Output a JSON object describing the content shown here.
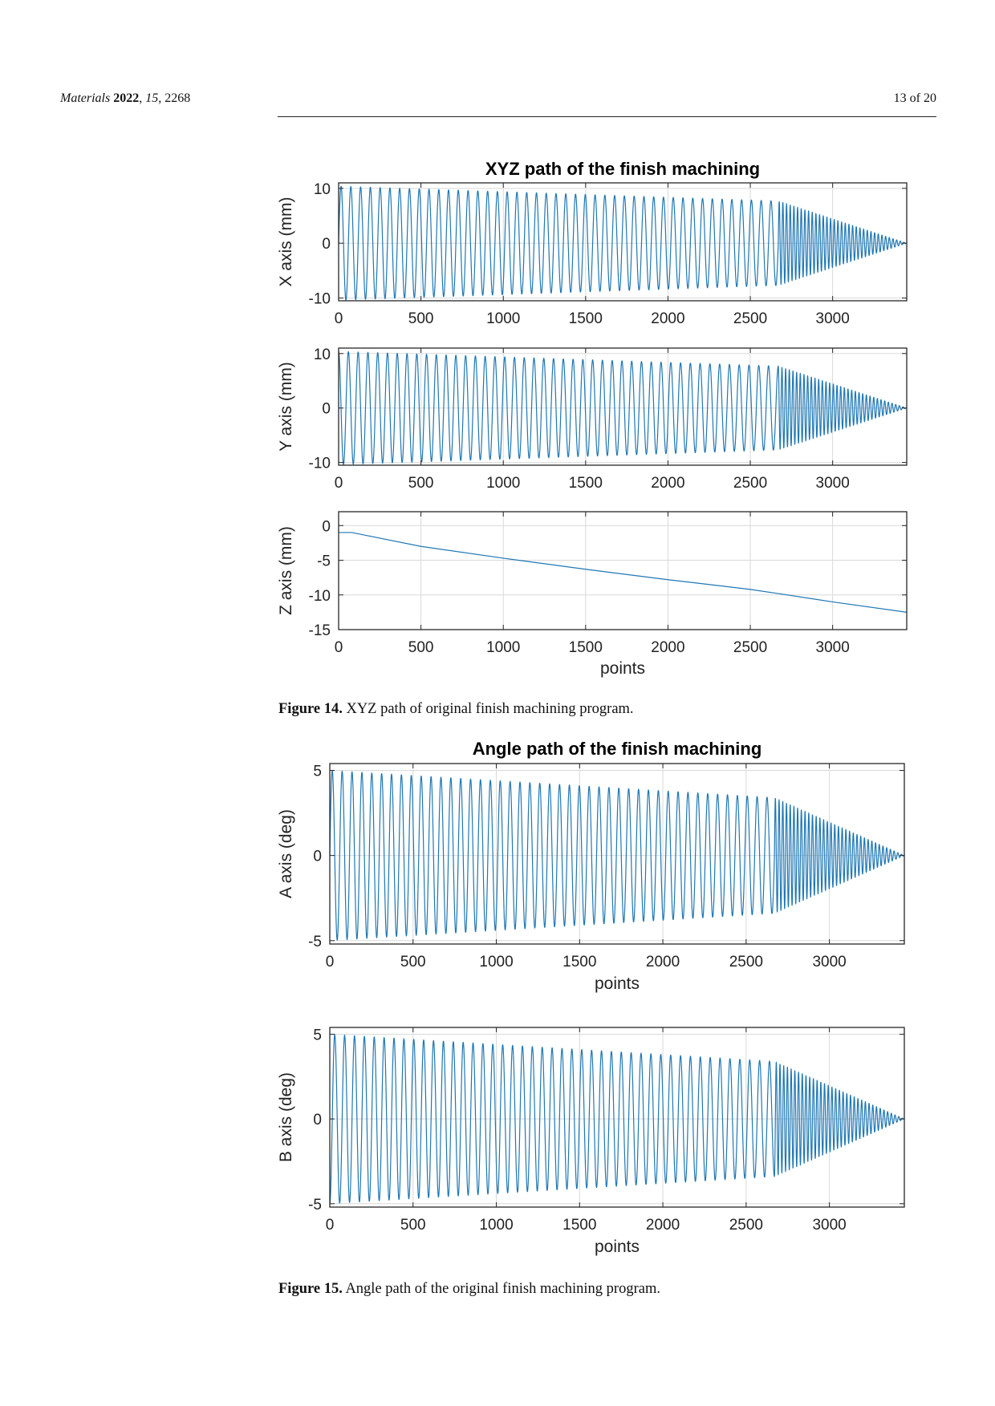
{
  "header": {
    "journal_italic": "Materials",
    "year": "2022",
    "volume": "15",
    "article": "2268",
    "page_of": "13 of 20"
  },
  "figure14": {
    "label": "Figure 14.",
    "caption": "XYZ path of original finish machining program."
  },
  "figure15": {
    "label": "Figure 15.",
    "caption": "Angle path of the original finish machining program."
  },
  "colors": {
    "line": "#1f77b4",
    "grid": "#d9d9d9",
    "axes": "#262626"
  },
  "chart_data": [
    {
      "id": "x",
      "type": "line",
      "title": "XYZ path of the finish machining",
      "xlabel": "",
      "ylabel": "X axis (mm)",
      "xlim": [
        0,
        3450
      ],
      "ylim": [
        -10.5,
        11
      ],
      "xticks": [
        0,
        500,
        1000,
        1500,
        2000,
        2500,
        3000
      ],
      "yticks": [
        -10,
        0,
        10
      ],
      "grid": true,
      "series": [
        {
          "kind": "oscillation",
          "n_points": 3450,
          "amplitude": 10.4,
          "phase": 0,
          "segments": [
            {
              "end": 2670,
              "cycles": 45,
              "amp_end": 7.7
            },
            {
              "end": 3450,
              "cycles": 35,
              "amp_end": 0
            }
          ]
        }
      ]
    },
    {
      "id": "y",
      "type": "line",
      "title": "",
      "xlabel": "",
      "ylabel": "Y axis (mm)",
      "xlim": [
        0,
        3450
      ],
      "ylim": [
        -10.5,
        11
      ],
      "xticks": [
        0,
        500,
        1000,
        1500,
        2000,
        2500,
        3000
      ],
      "yticks": [
        -10,
        0,
        10
      ],
      "grid": true,
      "series": [
        {
          "kind": "oscillation",
          "n_points": 3450,
          "amplitude": 10.4,
          "phase": 1.5708,
          "segments": [
            {
              "end": 2670,
              "cycles": 45,
              "amp_end": 7.7
            },
            {
              "end": 3450,
              "cycles": 35,
              "amp_end": 0
            }
          ]
        }
      ]
    },
    {
      "id": "z",
      "type": "line",
      "title": "",
      "xlabel": "points",
      "ylabel": "Z axis (mm)",
      "xlim": [
        0,
        3450
      ],
      "ylim": [
        -15,
        2
      ],
      "xticks": [
        0,
        500,
        1000,
        1500,
        2000,
        2500,
        3000
      ],
      "yticks": [
        -15,
        -10,
        -5,
        0
      ],
      "grid": true,
      "series": [
        {
          "kind": "polyline",
          "x": [
            0,
            80,
            500,
            1000,
            1500,
            2000,
            2500,
            2670,
            3000,
            3450
          ],
          "y": [
            -1,
            -1,
            -3,
            -4.7,
            -6.3,
            -7.8,
            -9.2,
            -9.8,
            -11.0,
            -12.5
          ]
        }
      ]
    },
    {
      "id": "a",
      "type": "line",
      "title": "Angle path of the finish machining",
      "xlabel": "points",
      "ylabel": "A axis (deg)",
      "xlim": [
        0,
        3450
      ],
      "ylim": [
        -5.2,
        5.4
      ],
      "xticks": [
        0,
        500,
        1000,
        1500,
        2000,
        2500,
        3000
      ],
      "yticks": [
        -5,
        0,
        5
      ],
      "grid": true,
      "series": [
        {
          "kind": "oscillation",
          "n_points": 3450,
          "amplitude": 5.0,
          "phase": 0,
          "segments": [
            {
              "end": 2670,
              "cycles": 45,
              "amp_end": 3.4
            },
            {
              "end": 3450,
              "cycles": 35,
              "amp_end": 0
            }
          ]
        }
      ]
    },
    {
      "id": "b",
      "type": "line",
      "title": "",
      "xlabel": "points",
      "ylabel": "B axis (deg)",
      "xlim": [
        0,
        3450
      ],
      "ylim": [
        -5.2,
        5.4
      ],
      "xticks": [
        0,
        500,
        1000,
        1500,
        2000,
        2500,
        3000
      ],
      "yticks": [
        -5,
        0,
        5
      ],
      "grid": true,
      "series": [
        {
          "kind": "oscillation",
          "n_points": 3450,
          "amplitude": 5.0,
          "phase": -1.5708,
          "segments": [
            {
              "end": 2670,
              "cycles": 45,
              "amp_end": 3.4
            },
            {
              "end": 3450,
              "cycles": 35,
              "amp_end": 0
            }
          ]
        }
      ]
    }
  ]
}
